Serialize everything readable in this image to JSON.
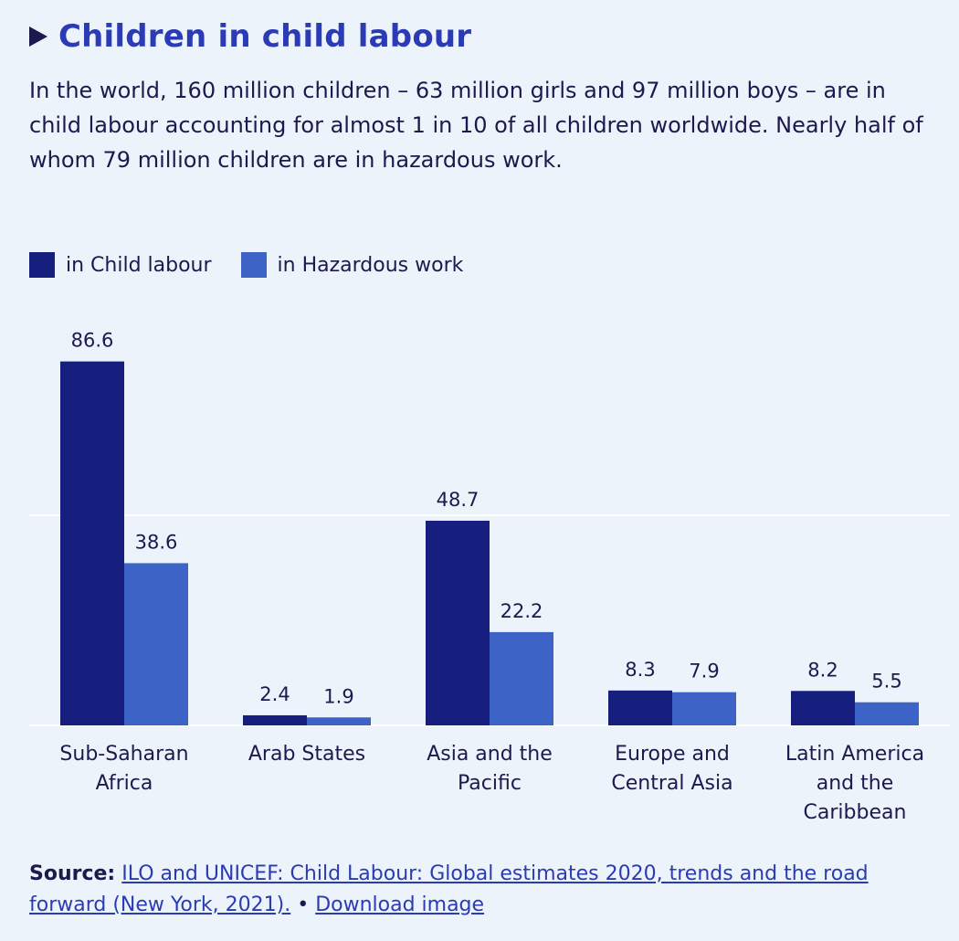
{
  "title": "Children in child labour",
  "subtitle": "In the world, 160 million children – 63 million girls and 97 million boys – are in child labour accounting for almost 1 in 10 of all children worldwide. Nearly half of whom 79 million children are in hazardous work.",
  "colors": {
    "child_labour": "#171f7e",
    "hazardous": "#3e63c6",
    "title": "#2a3bb5",
    "text": "#1c1a4d",
    "background": "#ecf3fb",
    "gridline": "#ffffff"
  },
  "chart_data": {
    "type": "bar",
    "categories": [
      [
        "Sub-Saharan",
        "Africa"
      ],
      [
        "Arab States"
      ],
      [
        "Asia and the",
        "Pacific"
      ],
      [
        "Europe and",
        "Central Asia"
      ],
      [
        "Latin America",
        "and the",
        "Caribbean"
      ]
    ],
    "series": [
      {
        "name": "in Child labour",
        "values": [
          86.6,
          2.4,
          48.7,
          8.3,
          8.2
        ]
      },
      {
        "name": "in Hazardous work",
        "values": [
          38.6,
          1.9,
          22.2,
          7.9,
          5.5
        ]
      }
    ],
    "ylim": [
      0,
      100
    ],
    "grid": true,
    "legend_position": "top-left"
  },
  "source": {
    "label": "Source:",
    "citation": "ILO and UNICEF: Child Labour: Global estimates 2020, trends and the road forward (New York, 2021).",
    "separator": " • ",
    "download": "Download image"
  }
}
